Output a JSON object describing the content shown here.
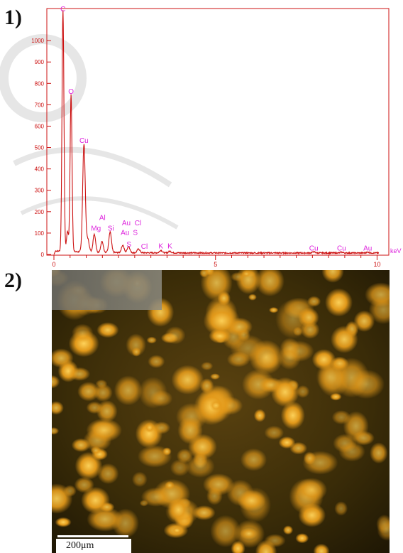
{
  "panels": {
    "first_label": "1)",
    "second_label": "2)"
  },
  "chart_data": {
    "type": "line",
    "xlabel": "keV",
    "xlim": [
      0,
      10.1
    ],
    "ylim": [
      0,
      1150
    ],
    "x_ticks": [
      0,
      5,
      10
    ],
    "y_ticks": [
      0,
      100,
      200,
      300,
      400,
      500,
      600,
      700,
      800,
      900,
      1000
    ],
    "y_tick_labels": [
      "0",
      "100",
      "200",
      "300",
      "400",
      "500",
      "600",
      "700",
      "800",
      "900",
      "1000"
    ],
    "line_color": "#cc1111",
    "label_color": "#dd22dd",
    "peaks": [
      {
        "x": 0.28,
        "y": 1125
      },
      {
        "x": 0.42,
        "y": 95
      },
      {
        "x": 0.53,
        "y": 735
      },
      {
        "x": 0.93,
        "y": 505
      },
      {
        "x": 1.05,
        "y": 60
      },
      {
        "x": 1.25,
        "y": 85
      },
      {
        "x": 1.49,
        "y": 50
      },
      {
        "x": 1.74,
        "y": 95
      },
      {
        "x": 2.13,
        "y": 35
      },
      {
        "x": 2.31,
        "y": 30
      },
      {
        "x": 2.62,
        "y": 18
      },
      {
        "x": 3.31,
        "y": 12
      },
      {
        "x": 3.59,
        "y": 8
      },
      {
        "x": 8.04,
        "y": 6
      },
      {
        "x": 8.9,
        "y": 4
      },
      {
        "x": 9.71,
        "y": 4
      }
    ],
    "element_labels": [
      {
        "text": "C",
        "x": 0.28,
        "y": 1130
      },
      {
        "text": "O",
        "x": 0.53,
        "y": 745
      },
      {
        "text": "Cu",
        "x": 0.93,
        "y": 515
      },
      {
        "text": "Al",
        "x": 1.5,
        "y": 155
      },
      {
        "text": "Mg",
        "x": 1.3,
        "y": 105
      },
      {
        "text": "Si",
        "x": 1.76,
        "y": 105
      },
      {
        "text": "Au",
        "x": 2.24,
        "y": 130
      },
      {
        "text": "Cl",
        "x": 2.6,
        "y": 130
      },
      {
        "text": "Au",
        "x": 2.2,
        "y": 85
      },
      {
        "text": "S",
        "x": 2.52,
        "y": 85
      },
      {
        "text": "S",
        "x": 2.32,
        "y": 30
      },
      {
        "text": "Cl",
        "x": 2.8,
        "y": 20
      },
      {
        "text": "K",
        "x": 3.31,
        "y": 22
      },
      {
        "text": "K",
        "x": 3.59,
        "y": 22
      },
      {
        "text": "Cu",
        "x": 8.04,
        "y": 12
      },
      {
        "text": "Cu",
        "x": 8.9,
        "y": 12
      },
      {
        "text": "Au",
        "x": 9.71,
        "y": 12
      }
    ]
  },
  "micrograph": {
    "scale_label": "200μm"
  }
}
